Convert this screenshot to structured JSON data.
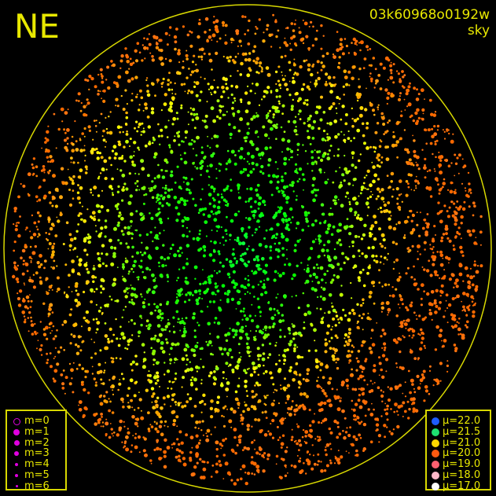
{
  "direction_label": "NE",
  "image_id": "03k60968o0192w",
  "image_type": "sky",
  "colors": {
    "frame": "#d8d800",
    "text": "#e8e800",
    "magnitude_marker": "#e000e0"
  },
  "magnitude_legend": [
    {
      "label": "m=0",
      "style": "ring"
    },
    {
      "label": "m=1",
      "style": "filled"
    },
    {
      "label": "m=2",
      "style": "filled"
    },
    {
      "label": "m=3",
      "style": "filled"
    },
    {
      "label": "m=4",
      "style": "filled"
    },
    {
      "label": "m=5",
      "style": "filled"
    },
    {
      "label": "m=6",
      "style": "filled"
    }
  ],
  "brightness_legend": [
    {
      "label": "μ=22.0",
      "color": "#1e5cff"
    },
    {
      "label": "μ=21.5",
      "color": "#1ee070"
    },
    {
      "label": "μ=21.0",
      "color": "#ffd800"
    },
    {
      "label": "μ=20.0",
      "color": "#ff5a10"
    },
    {
      "label": "μ=19.0",
      "color": "#ff6070"
    },
    {
      "label": "μ=18.0",
      "color": "#ffb8c8"
    },
    {
      "label": "μ=17.0",
      "color": "#ffffff"
    }
  ]
}
